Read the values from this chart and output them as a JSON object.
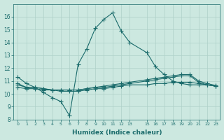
{
  "xlabel": "Humidex (Indice chaleur)",
  "bg_color": "#cce8e0",
  "line_color": "#1a6b6b",
  "grid_color": "#aed0c8",
  "series": {
    "main": {
      "x": [
        0,
        1,
        2,
        3,
        4,
        5,
        6,
        7,
        8,
        9,
        10,
        11,
        12,
        13,
        15,
        16,
        17,
        18,
        19,
        20,
        21,
        22,
        23
      ],
      "y": [
        11.3,
        10.8,
        10.5,
        10.1,
        9.7,
        9.4,
        8.3,
        12.3,
        13.5,
        15.1,
        15.8,
        16.3,
        14.9,
        14.0,
        13.2,
        12.1,
        11.5,
        11.0,
        10.8,
        10.7,
        10.7,
        10.7,
        10.6
      ]
    },
    "line2": {
      "x": [
        0,
        1,
        2,
        3,
        4,
        5,
        6,
        7,
        8,
        9,
        10,
        11,
        12,
        13,
        15,
        16,
        17,
        18,
        19,
        20,
        21,
        22,
        23
      ],
      "y": [
        10.8,
        10.5,
        10.5,
        10.4,
        10.3,
        10.3,
        10.3,
        10.3,
        10.4,
        10.5,
        10.6,
        10.7,
        10.8,
        10.9,
        11.1,
        11.2,
        11.3,
        11.4,
        11.5,
        11.5,
        11.0,
        10.8,
        10.65
      ]
    },
    "line3": {
      "x": [
        0,
        1,
        2,
        3,
        4,
        5,
        6,
        7,
        8,
        9,
        10,
        11,
        12,
        13,
        15,
        16,
        17,
        18,
        19,
        20,
        21,
        22,
        23
      ],
      "y": [
        10.7,
        10.5,
        10.5,
        10.4,
        10.3,
        10.3,
        10.3,
        10.3,
        10.4,
        10.5,
        10.5,
        10.6,
        10.7,
        10.8,
        11.0,
        11.1,
        11.2,
        11.3,
        11.4,
        11.4,
        10.9,
        10.7,
        10.6
      ]
    },
    "line4": {
      "x": [
        0,
        1,
        2,
        3,
        4,
        5,
        6,
        7,
        8,
        9,
        10,
        11,
        12,
        13,
        15,
        16,
        17,
        18,
        19,
        20,
        21,
        22,
        23
      ],
      "y": [
        10.5,
        10.4,
        10.4,
        10.3,
        10.3,
        10.2,
        10.2,
        10.2,
        10.3,
        10.4,
        10.4,
        10.5,
        10.6,
        10.7,
        10.7,
        10.8,
        10.8,
        10.9,
        10.9,
        10.9,
        10.8,
        10.7,
        10.6
      ]
    }
  },
  "ylim": [
    8,
    17
  ],
  "yticks": [
    8,
    9,
    10,
    11,
    12,
    13,
    14,
    15,
    16
  ],
  "xticks": [
    0,
    1,
    2,
    3,
    4,
    5,
    6,
    7,
    8,
    9,
    10,
    11,
    12,
    13,
    15,
    16,
    17,
    18,
    19,
    20,
    21,
    22,
    23
  ],
  "xtick_labels": [
    "0",
    "1",
    "2",
    "3",
    "4",
    "5",
    "6",
    "7",
    "8",
    "9",
    "10",
    "11",
    "12",
    "13",
    "15",
    "16",
    "17",
    "18",
    "19",
    "20",
    "21",
    "22",
    "23"
  ],
  "marker": "+",
  "markersize": 4,
  "linewidth": 0.8
}
